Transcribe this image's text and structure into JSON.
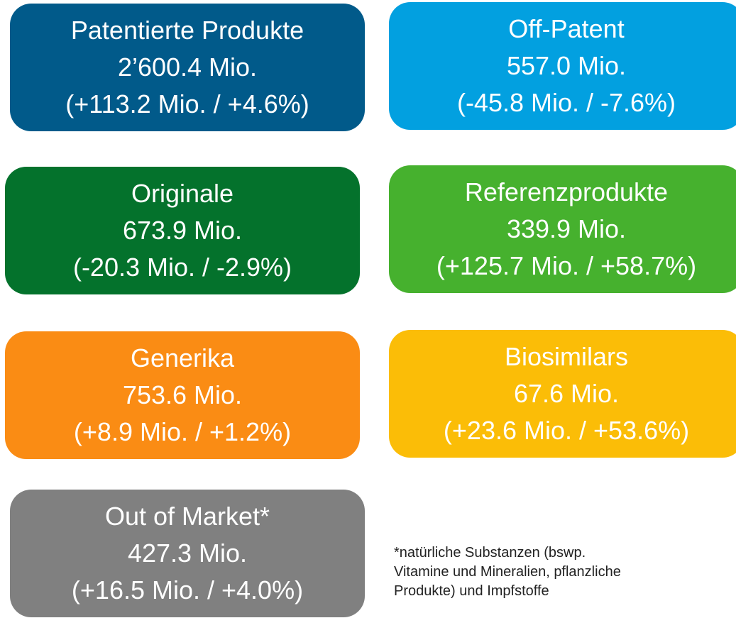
{
  "boxes": [
    {
      "title": "Patentierte Produkte",
      "value": "2’600.4 Mio.",
      "change": "(+113.2 Mio. / +4.6%)",
      "color": "#015a8a"
    },
    {
      "title": "Off-Patent",
      "value": "557.0 Mio.",
      "change": "(-45.8 Mio. / -7.6%)",
      "color": "#02a0e0"
    },
    {
      "title": "Originale",
      "value": "673.9 Mio.",
      "change": "(-20.3 Mio. / -2.9%)",
      "color": "#04722c"
    },
    {
      "title": "Referenzprodukte",
      "value": "339.9 Mio.",
      "change": "(+125.7 Mio. / +58.7%)",
      "color": "#46b12e"
    },
    {
      "title": "Generika",
      "value": "753.6 Mio.",
      "change": "(+8.9 Mio. / +1.2%)",
      "color": "#fa8c14"
    },
    {
      "title": "Biosimilars",
      "value": "67.6 Mio.",
      "change": "(+23.6 Mio. / +53.6%)",
      "color": "#fbbd07"
    },
    {
      "title": "Out of Market*",
      "value": "427.3 Mio.",
      "change": "(+16.5 Mio. / +4.0%)",
      "color": "#808080"
    }
  ],
  "footnote": [
    "*natürliche Substanzen (bswp.",
    "Vitamine und Mineralien, pflanzliche",
    "Produkte) und Impfstoffe"
  ]
}
